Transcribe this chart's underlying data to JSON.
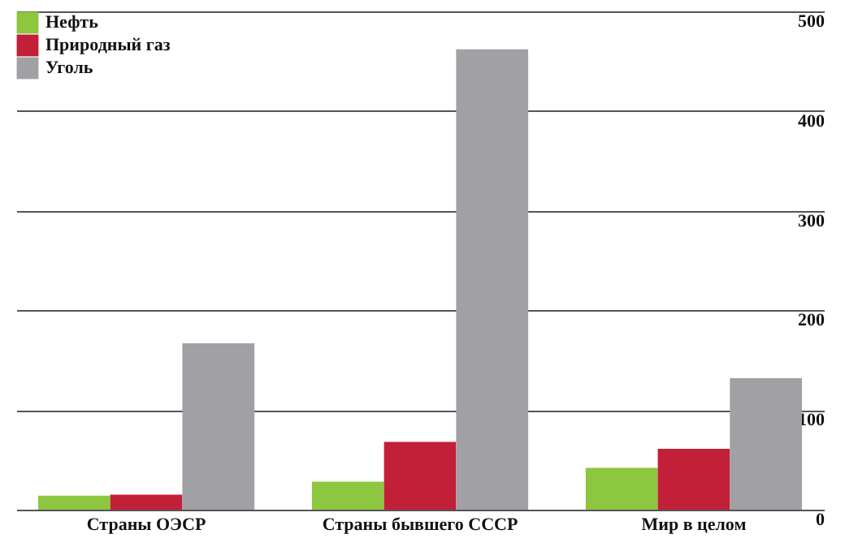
{
  "chart_data": {
    "type": "bar",
    "categories": [
      "Страны ОЭСР",
      "Страны бывшего СССР",
      "Мир в целом"
    ],
    "series": [
      {
        "name": "Нефть",
        "color": "#8dc63f",
        "values": [
          14,
          28,
          42
        ]
      },
      {
        "name": "Природный газ",
        "color": "#c21f38",
        "values": [
          15,
          68,
          61
        ]
      },
      {
        "name": "Уголь",
        "color": "#a1a0a5",
        "values": [
          167,
          462,
          132
        ]
      }
    ],
    "ylim": [
      0,
      500
    ],
    "yticks": [
      0,
      100,
      200,
      300,
      400,
      500
    ],
    "grid": "y",
    "legend": "top left"
  }
}
